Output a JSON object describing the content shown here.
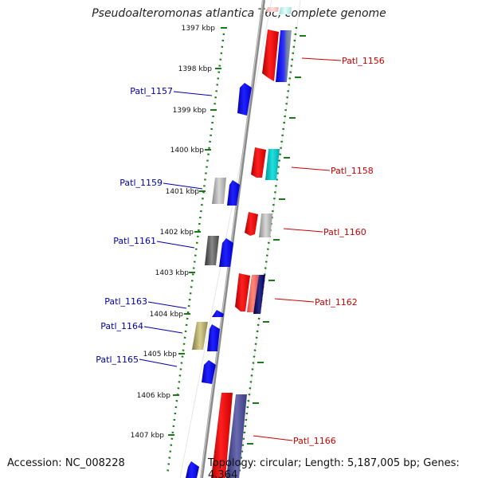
{
  "title": "Pseudoalteromonas atlantica T6c, complete genome",
  "accession_text": "Accession: NC_008228",
  "summary_text": "Topology: circular; Length: 5,187,005 bp; Genes: 4,364",
  "colors": {
    "forward_label": "#cc0000",
    "reverse_label": "#0000aa",
    "ruler": "#1a7a1a",
    "backbone": "#999999"
  },
  "ruler_ticks": [
    "1397 kbp",
    "1398 kbp",
    "1399 kbp",
    "1400 kbp",
    "1401 kbp",
    "1402 kbp",
    "1403 kbp",
    "1404 kbp",
    "1405 kbp",
    "1406 kbp",
    "1407 kbp"
  ],
  "gene_labels_forward": [
    "Patl_1156",
    "Patl_1158",
    "Patl_1160",
    "Patl_1162",
    "Patl_1166"
  ],
  "gene_labels_reverse": [
    "Patl_1157",
    "Patl_1159",
    "Patl_1161",
    "Patl_1163",
    "Patl_1164",
    "Patl_1165"
  ]
}
